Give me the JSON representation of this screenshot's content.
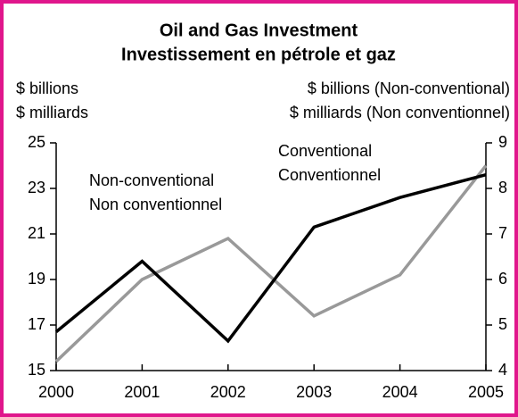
{
  "chart_data": {
    "type": "line",
    "title": "Oil and Gas Investment",
    "subtitle": "Investissement en pétrole et gaz",
    "ylabel": [
      "$ billions",
      "$ milliards"
    ],
    "y2label": [
      "$ billions (Non-conventional)",
      "$ milliards (Non conventionnel)"
    ],
    "x": [
      2000,
      2001,
      2002,
      2003,
      2004,
      2005
    ],
    "xlim": [
      2000,
      2005
    ],
    "xticks": [
      2000,
      2001,
      2002,
      2003,
      2004,
      2005
    ],
    "ylim": [
      15,
      25
    ],
    "yticks": [
      15,
      17,
      19,
      21,
      23,
      25
    ],
    "y2lim": [
      4,
      9
    ],
    "y2ticks": [
      4,
      5,
      6,
      7,
      8,
      9
    ],
    "series": [
      {
        "name": [
          "Conventional",
          "Conventionnel"
        ],
        "color": "#000000",
        "values": [
          16.7,
          19.8,
          16.3,
          21.3,
          22.6,
          23.6
        ]
      },
      {
        "name": [
          "Non-conventional",
          "Non conventionnel"
        ],
        "color": "#999999",
        "axis": "y2",
        "values": [
          4.2,
          6.0,
          6.9,
          5.2,
          6.1,
          8.5
        ]
      }
    ]
  }
}
